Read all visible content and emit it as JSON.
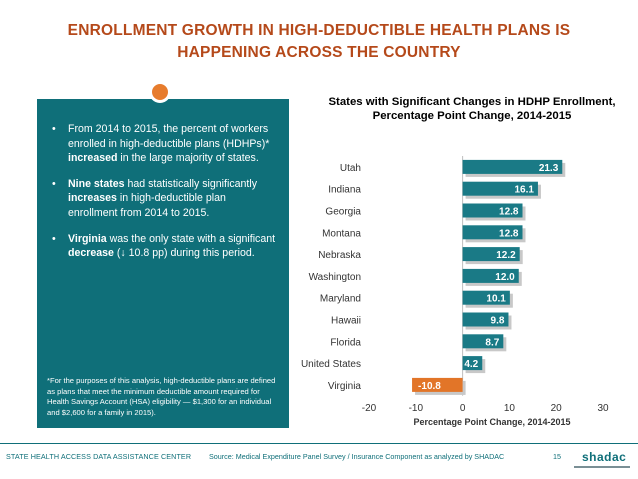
{
  "slide": {
    "title_line1": "ENROLLMENT GROWTH IN HIGH-DEDUCTIBLE HEALTH PLANS IS",
    "title_line2": "HAPPENING ACROSS THE COUNTRY",
    "page_number": "15"
  },
  "panel": {
    "bullets": [
      {
        "pre": "From 2014 to 2015, the percent of workers enrolled in high-deductible plans (HDHPs)* ",
        "bold": "increased",
        "post": " in the large majority of states."
      },
      {
        "pre": "",
        "bold": "Nine states",
        "post": " had statistically significantly ",
        "bold2": "increases",
        "post2": " in high-deductible plan enrollment from 2014 to 2015."
      },
      {
        "pre": "",
        "bold": "Virginia",
        "post": " was the only state with a significant ",
        "bold2": "decrease",
        "post2": " (↓ 10.8 pp) during this period."
      }
    ],
    "footnote": "*For the purposes of this analysis, high-deductible plans are defined as plans that meet the minimum deductible amount required for Health Savings Account (HSA) eligibility — $1,300 for an individual and $2,600 for a family in 2015)."
  },
  "footer": {
    "org": "STATE HEALTH ACCESS DATA ASSISTANCE CENTER",
    "source": "Source: Medical Expenditure Panel Survey / Insurance Component as analyzed by SHADAC",
    "logo_text": "shadac"
  },
  "colors": {
    "title": "#b5491a",
    "panel": "#0f6f79",
    "bar_positive": "#1a7a86",
    "bar_negative": "#e27528",
    "accent_dot": "#e77c2d"
  },
  "chart_data": {
    "type": "bar",
    "orientation": "horizontal",
    "title": "States with Significant Changes in HDHP Enrollment, Percentage Point Change, 2014-2015",
    "xlabel": "Percentage Point Change, 2014-2015",
    "ylabel": "",
    "categories": [
      "Utah",
      "Indiana",
      "Georgia",
      "Montana",
      "Nebraska",
      "Washington",
      "Maryland",
      "Hawaii",
      "Florida",
      "United States",
      "Virginia"
    ],
    "values": [
      21.3,
      16.1,
      12.8,
      12.8,
      12.2,
      12.0,
      10.1,
      9.8,
      8.7,
      4.2,
      -10.8
    ],
    "labels": [
      "21.3",
      "16.1",
      "12.8",
      "12.8",
      "12.2",
      "12.0",
      "10.1",
      "9.8",
      "8.7",
      "4.2",
      "-10.8"
    ],
    "xlim": [
      -20,
      30
    ],
    "xticks": [
      "-20",
      "-10",
      "0",
      "10",
      "20",
      "30"
    ],
    "grid": false,
    "legend": "none"
  }
}
